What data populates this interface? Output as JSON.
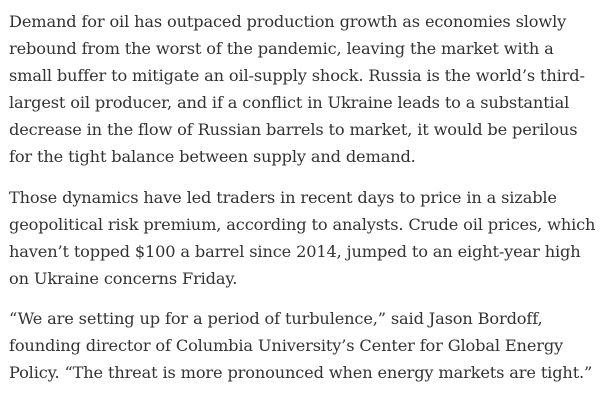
{
  "article": {
    "paragraphs": [
      {
        "link_text": "Demand for oil has outpaced production growth",
        "text": " as economies slowly rebound from the worst of the pandemic, leaving the market with a small buffer to mitigate an oil-supply shock. Russia is the world’s third-largest oil producer, and if a conflict in Ukraine leads to a substantial decrease in the flow of Russian barrels to market, it would be perilous for the tight balance between supply and demand."
      },
      {
        "text": "Those dynamics have led traders in recent days to price in a sizable geopolitical risk premium, according to analysts. Crude oil prices, which haven’t topped $100 a barrel since 2014, jumped to an eight-year high on Ukraine concerns Friday."
      },
      {
        "text": "“We are setting up for a period of turbulence,” said Jason Bordoff, founding director of Columbia University’s Center for Global Energy Policy. “The threat is more pronounced when energy markets are tight.”"
      }
    ],
    "colors": {
      "text": "#333333",
      "underline": "#d9342b",
      "background": "#ffffff"
    }
  }
}
